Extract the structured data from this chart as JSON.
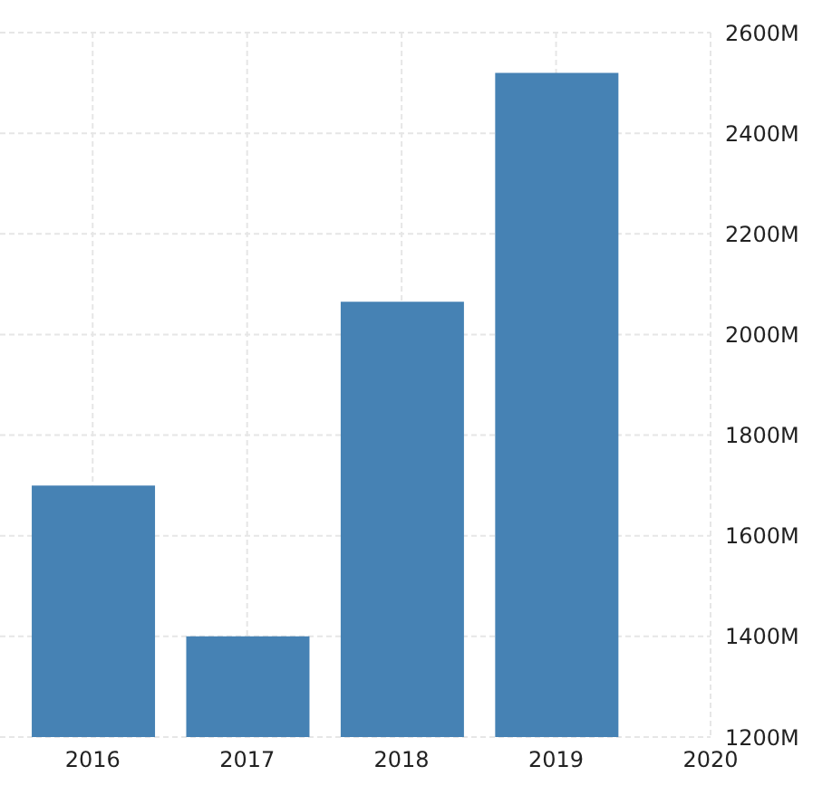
{
  "chart_data": {
    "type": "bar",
    "x": [
      2016,
      2017,
      2018,
      2019
    ],
    "values": [
      1700,
      1400,
      2065,
      2520
    ],
    "color": "#4682b4",
    "xlim": [
      2015.4,
      2020
    ],
    "xticks": [
      2016,
      2017,
      2018,
      2019,
      2020
    ],
    "ylim": [
      1200,
      2600
    ],
    "yticks": [
      {
        "value": 1200,
        "label": "1200M"
      },
      {
        "value": 1400,
        "label": "1400M"
      },
      {
        "value": 1600,
        "label": "1600M"
      },
      {
        "value": 1800,
        "label": "1800M"
      },
      {
        "value": 2000,
        "label": "2000M"
      },
      {
        "value": 2200,
        "label": "2200M"
      },
      {
        "value": 2400,
        "label": "2400M"
      },
      {
        "value": 2600,
        "label": "2600M"
      }
    ],
    "grid": true
  }
}
